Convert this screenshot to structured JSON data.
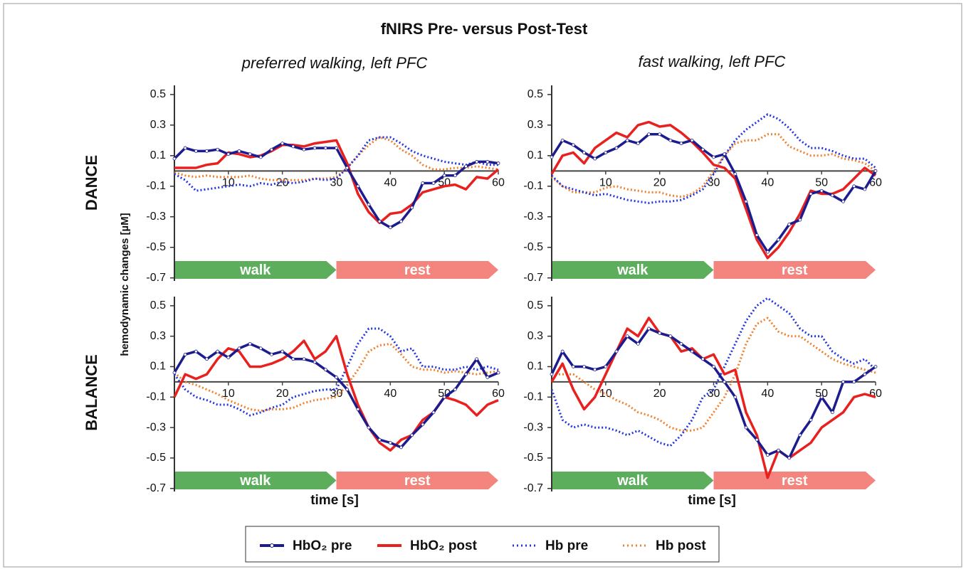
{
  "chart_data": {
    "type": "line",
    "title": "fNIRS Pre- versus Post-Test",
    "columns": [
      "preferred walking, left PFC",
      "fast walking, left PFC"
    ],
    "rows": [
      "DANCE",
      "BALANCE"
    ],
    "ylabel": "hemodynamic changes [µM]",
    "xlabel": "time [s]",
    "x": [
      0,
      2,
      4,
      6,
      8,
      10,
      12,
      14,
      16,
      18,
      20,
      22,
      24,
      26,
      28,
      30,
      32,
      34,
      36,
      38,
      40,
      42,
      44,
      46,
      48,
      50,
      52,
      54,
      56,
      58,
      60
    ],
    "xlim": [
      0,
      60
    ],
    "xticks": [
      10,
      20,
      30,
      40,
      50,
      60
    ],
    "ylim": [
      -0.72,
      0.56
    ],
    "yticks": [
      -0.7,
      -0.5,
      -0.3,
      -0.1,
      0.1,
      0.3,
      0.5
    ],
    "phases": [
      {
        "label": "walk",
        "start": 0,
        "end": 30,
        "color": "#5cae5c"
      },
      {
        "label": "rest",
        "start": 30,
        "end": 60,
        "color": "#f4847e"
      }
    ],
    "series": [
      {
        "name": "HbO₂ pre",
        "color": "#1c1c8e",
        "dash": false,
        "marker": true,
        "values": [
          [
            0.08,
            0.15,
            0.13,
            0.13,
            0.14,
            0.11,
            0.13,
            0.11,
            0.09,
            0.14,
            0.18,
            0.16,
            0.14,
            0.15,
            0.15,
            0.15,
            0.02,
            -0.1,
            -0.22,
            -0.33,
            -0.37,
            -0.33,
            -0.24,
            -0.08,
            -0.08,
            -0.03,
            -0.03,
            0.03,
            0.06,
            0.06,
            0.05
          ],
          [
            0.09,
            0.2,
            0.17,
            0.12,
            0.08,
            0.12,
            0.15,
            0.2,
            0.18,
            0.24,
            0.24,
            0.2,
            0.18,
            0.2,
            0.14,
            0.09,
            0.11,
            -0.02,
            -0.2,
            -0.42,
            -0.53,
            -0.45,
            -0.35,
            -0.32,
            -0.15,
            -0.13,
            -0.16,
            -0.2,
            -0.1,
            -0.12,
            0.0
          ],
          [
            0.06,
            0.18,
            0.2,
            0.15,
            0.2,
            0.16,
            0.22,
            0.25,
            0.22,
            0.18,
            0.2,
            0.15,
            0.15,
            0.13,
            0.08,
            0.03,
            -0.05,
            -0.18,
            -0.3,
            -0.38,
            -0.4,
            -0.43,
            -0.35,
            -0.28,
            -0.2,
            -0.1,
            -0.05,
            0.05,
            0.15,
            0.03,
            0.06
          ],
          [
            0.05,
            0.2,
            0.1,
            0.1,
            0.08,
            0.1,
            0.2,
            0.3,
            0.25,
            0.35,
            0.32,
            0.3,
            0.25,
            0.2,
            0.15,
            0.1,
            0.0,
            -0.1,
            -0.3,
            -0.38,
            -0.48,
            -0.45,
            -0.5,
            -0.35,
            -0.25,
            -0.1,
            -0.2,
            0.0,
            0.0,
            0.05,
            0.1
          ]
        ]
      },
      {
        "name": "HbO₂ post",
        "color": "#e8201e",
        "dash": false,
        "marker": false,
        "values": [
          [
            0.02,
            0.02,
            0.02,
            0.04,
            0.05,
            0.12,
            0.11,
            0.09,
            0.1,
            0.13,
            0.17,
            0.17,
            0.16,
            0.18,
            0.19,
            0.2,
            0.05,
            -0.15,
            -0.27,
            -0.34,
            -0.28,
            -0.27,
            -0.22,
            -0.14,
            -0.12,
            -0.1,
            -0.09,
            -0.12,
            -0.04,
            -0.05,
            0.01
          ],
          [
            -0.02,
            0.1,
            0.12,
            0.05,
            0.15,
            0.2,
            0.25,
            0.22,
            0.3,
            0.32,
            0.29,
            0.3,
            0.25,
            0.19,
            0.12,
            0.04,
            0.02,
            -0.05,
            -0.25,
            -0.45,
            -0.57,
            -0.5,
            -0.4,
            -0.28,
            -0.13,
            -0.15,
            -0.15,
            -0.12,
            -0.05,
            0.02,
            -0.03
          ],
          [
            -0.1,
            0.05,
            0.02,
            0.05,
            0.15,
            0.22,
            0.2,
            0.1,
            0.1,
            0.12,
            0.15,
            0.2,
            0.27,
            0.15,
            0.2,
            0.3,
            0.05,
            -0.15,
            -0.3,
            -0.4,
            -0.45,
            -0.38,
            -0.35,
            -0.25,
            -0.2,
            -0.1,
            -0.12,
            -0.15,
            -0.22,
            -0.15,
            -0.12
          ],
          [
            0.0,
            0.12,
            -0.05,
            -0.18,
            -0.1,
            0.05,
            0.2,
            0.35,
            0.3,
            0.42,
            0.32,
            0.3,
            0.2,
            0.22,
            0.15,
            0.18,
            0.05,
            0.08,
            -0.2,
            -0.35,
            -0.63,
            -0.45,
            -0.5,
            -0.45,
            -0.4,
            -0.3,
            -0.25,
            -0.2,
            -0.1,
            -0.08,
            -0.1
          ]
        ]
      },
      {
        "name": "Hb pre",
        "color": "#2436e0",
        "dash": true,
        "marker": false,
        "values": [
          [
            -0.02,
            -0.06,
            -0.13,
            -0.12,
            -0.11,
            -0.1,
            -0.09,
            -0.1,
            -0.08,
            -0.09,
            -0.07,
            -0.08,
            -0.07,
            -0.05,
            -0.06,
            -0.05,
            0.02,
            0.1,
            0.2,
            0.22,
            0.22,
            0.18,
            0.13,
            0.1,
            0.08,
            0.06,
            0.05,
            0.04,
            0.06,
            0.04,
            0.04
          ],
          [
            -0.03,
            -0.1,
            -0.12,
            -0.14,
            -0.16,
            -0.15,
            -0.17,
            -0.19,
            -0.2,
            -0.21,
            -0.2,
            -0.2,
            -0.19,
            -0.16,
            -0.12,
            -0.02,
            0.1,
            0.2,
            0.27,
            0.32,
            0.37,
            0.34,
            0.28,
            0.2,
            0.15,
            0.15,
            0.13,
            0.1,
            0.08,
            0.08,
            0.02
          ],
          [
            0.05,
            -0.05,
            -0.1,
            -0.12,
            -0.15,
            -0.15,
            -0.18,
            -0.22,
            -0.2,
            -0.17,
            -0.15,
            -0.1,
            -0.08,
            -0.06,
            -0.05,
            -0.05,
            0.1,
            0.25,
            0.35,
            0.35,
            0.3,
            0.2,
            0.22,
            0.1,
            0.1,
            0.08,
            0.08,
            0.1,
            0.08,
            0.1,
            0.08
          ],
          [
            -0.05,
            -0.25,
            -0.3,
            -0.28,
            -0.3,
            -0.3,
            -0.32,
            -0.35,
            -0.32,
            -0.36,
            -0.4,
            -0.42,
            -0.35,
            -0.25,
            -0.1,
            -0.05,
            0.1,
            0.25,
            0.4,
            0.5,
            0.55,
            0.5,
            0.45,
            0.35,
            0.3,
            0.3,
            0.2,
            0.15,
            0.12,
            0.15,
            0.08
          ]
        ]
      },
      {
        "name": "Hb post",
        "color": "#f0802c",
        "dash": true,
        "marker": false,
        "values": [
          [
            -0.01,
            -0.03,
            -0.04,
            -0.03,
            -0.04,
            -0.04,
            -0.04,
            -0.03,
            -0.05,
            -0.06,
            -0.06,
            -0.06,
            -0.06,
            -0.05,
            -0.05,
            -0.04,
            0.02,
            0.1,
            0.17,
            0.22,
            0.2,
            0.14,
            0.1,
            0.04,
            0.01,
            0.01,
            0.02,
            0.02,
            0.03,
            0.02,
            0.01
          ],
          [
            -0.04,
            -0.1,
            -0.14,
            -0.14,
            -0.14,
            -0.11,
            -0.1,
            -0.12,
            -0.13,
            -0.14,
            -0.14,
            -0.16,
            -0.17,
            -0.15,
            -0.1,
            0.0,
            0.1,
            0.18,
            0.2,
            0.2,
            0.24,
            0.24,
            0.16,
            0.13,
            0.1,
            0.1,
            0.11,
            0.08,
            0.07,
            0.05,
            0.0
          ],
          [
            0.06,
            0.0,
            -0.02,
            -0.05,
            -0.08,
            -0.12,
            -0.15,
            -0.18,
            -0.19,
            -0.18,
            -0.18,
            -0.17,
            -0.14,
            -0.12,
            -0.11,
            -0.1,
            -0.02,
            0.08,
            0.2,
            0.24,
            0.25,
            0.18,
            0.1,
            0.08,
            0.08,
            0.06,
            0.07,
            0.06,
            0.05,
            0.06,
            0.07
          ],
          [
            0.05,
            0.05,
            0.05,
            0.0,
            -0.05,
            -0.08,
            -0.12,
            -0.15,
            -0.2,
            -0.22,
            -0.25,
            -0.3,
            -0.32,
            -0.32,
            -0.3,
            -0.2,
            -0.1,
            0.05,
            0.25,
            0.38,
            0.42,
            0.33,
            0.3,
            0.3,
            0.25,
            0.2,
            0.15,
            0.12,
            0.1,
            0.08,
            0.06
          ]
        ]
      }
    ]
  }
}
